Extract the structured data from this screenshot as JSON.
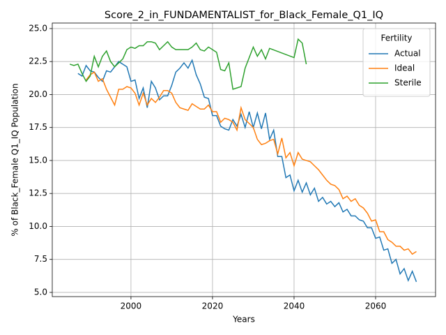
{
  "chart_data": {
    "type": "line",
    "title": "Score_2_in_FUNDAMENTALIST_for_Black_Female_Q1_IQ",
    "x_label": "Years",
    "y_label": "% of Black_Female Q1_IQ Population",
    "legend_title": "Fertility",
    "legend_loc": "upper right",
    "grid": true,
    "xlim": [
      1980.7,
      2074.7
    ],
    "ylim": [
      4.68,
      25.42
    ],
    "xticks": [
      2000,
      2020,
      2040,
      2060
    ],
    "yticks": [
      {
        "value": 5,
        "label": "5.0"
      },
      7.5,
      {
        "value": 10,
        "label": "10.0"
      },
      12.5,
      {
        "value": 15,
        "label": "15.0"
      },
      17.5,
      {
        "value": 20,
        "label": "20.0"
      },
      22.5,
      {
        "value": 25,
        "label": "25.0"
      }
    ],
    "series": [
      {
        "name": "Actual",
        "color": "#1f77b4",
        "x": [
          1987,
          1988,
          1989,
          1990,
          1991,
          1992,
          1993,
          1994,
          1995,
          1996,
          1997,
          1998,
          1999,
          2000,
          2001,
          2002,
          2003,
          2004,
          2005,
          2006,
          2007,
          2008,
          2009,
          2010,
          2011,
          2012,
          2013,
          2014,
          2015,
          2016,
          2017,
          2018,
          2019,
          2020,
          2021,
          2022,
          2023,
          2024,
          2025,
          2026,
          2027,
          2028,
          2029,
          2030,
          2031,
          2032,
          2033,
          2034,
          2035,
          2036,
          2037,
          2038,
          2039,
          2040,
          2041,
          2042,
          2043,
          2044,
          2045,
          2046,
          2047,
          2048,
          2049,
          2050,
          2051,
          2052,
          2053,
          2054,
          2055,
          2056,
          2057,
          2058,
          2059,
          2060,
          2061,
          2062,
          2063,
          2064,
          2065,
          2066,
          2067,
          2068,
          2069,
          2070
        ],
        "values": [
          21.6,
          21.4,
          22.2,
          21.8,
          21.7,
          21.3,
          21.0,
          21.8,
          21.7,
          22.1,
          22.5,
          22.3,
          22.1,
          21.0,
          21.1,
          19.7,
          20.5,
          19.0,
          21.0,
          20.5,
          19.6,
          19.9,
          19.9,
          20.7,
          21.7,
          22.0,
          22.4,
          22.0,
          22.6,
          21.5,
          20.8,
          19.8,
          19.7,
          18.4,
          18.4,
          17.6,
          17.4,
          17.3,
          18.1,
          17.6,
          18.5,
          17.5,
          18.7,
          17.5,
          18.6,
          17.4,
          18.6,
          16.6,
          17.3,
          15.3,
          15.3,
          13.7,
          13.9,
          12.7,
          13.5,
          12.6,
          13.3,
          12.4,
          12.9,
          11.9,
          12.2,
          11.7,
          11.9,
          11.5,
          11.8,
          11.1,
          11.3,
          10.8,
          10.8,
          10.5,
          10.4,
          9.9,
          9.9,
          9.1,
          9.2,
          8.2,
          8.3,
          7.2,
          7.5,
          6.4,
          6.8,
          5.9,
          6.6,
          5.8
        ]
      },
      {
        "name": "Ideal",
        "color": "#ff7f0e",
        "x": [
          1989,
          1990,
          1991,
          1992,
          1993,
          1994,
          1995,
          1996,
          1997,
          1998,
          1999,
          2000,
          2001,
          2002,
          2003,
          2004,
          2005,
          2006,
          2007,
          2008,
          2009,
          2010,
          2011,
          2012,
          2013,
          2014,
          2015,
          2016,
          2017,
          2018,
          2019,
          2020,
          2021,
          2022,
          2023,
          2024,
          2025,
          2026,
          2027,
          2028,
          2029,
          2030,
          2031,
          2032,
          2033,
          2034,
          2035,
          2036,
          2037,
          2038,
          2039,
          2040,
          2041,
          2042,
          2043,
          2044,
          2045,
          2046,
          2047,
          2048,
          2049,
          2050,
          2051,
          2052,
          2053,
          2054,
          2055,
          2056,
          2057,
          2058,
          2059,
          2060,
          2061,
          2062,
          2063,
          2064,
          2065,
          2066,
          2067,
          2068,
          2069,
          2070
        ],
        "values": [
          21.1,
          21.5,
          21.7,
          21.0,
          21.2,
          20.4,
          19.8,
          19.2,
          20.4,
          20.4,
          20.6,
          20.5,
          20.1,
          19.2,
          20.1,
          19.2,
          19.7,
          19.4,
          19.8,
          20.3,
          20.3,
          20.1,
          19.4,
          19.0,
          18.9,
          18.8,
          19.3,
          19.1,
          18.9,
          18.9,
          19.2,
          18.7,
          18.7,
          17.9,
          18.2,
          18.1,
          17.9,
          17.3,
          19.0,
          18.1,
          17.8,
          17.5,
          16.6,
          16.2,
          16.3,
          16.5,
          16.6,
          15.5,
          16.7,
          15.2,
          15.6,
          14.6,
          15.6,
          15.1,
          15.0,
          14.9,
          14.6,
          14.3,
          13.9,
          13.5,
          13.2,
          13.1,
          12.8,
          12.1,
          12.3,
          11.9,
          12.1,
          11.6,
          11.4,
          11.0,
          10.4,
          10.5,
          9.6,
          9.6,
          9.0,
          8.8,
          8.5,
          8.5,
          8.2,
          8.3,
          7.9,
          8.1
        ]
      },
      {
        "name": "Sterile",
        "color": "#2ca02c",
        "x": [
          1985,
          1986,
          1987,
          1988,
          1989,
          1990,
          1991,
          1992,
          1993,
          1994,
          1995,
          1996,
          1997,
          1998,
          1999,
          2000,
          2001,
          2002,
          2003,
          2004,
          2005,
          2006,
          2007,
          2008,
          2009,
          2010,
          2011,
          2012,
          2013,
          2014,
          2015,
          2016,
          2017,
          2018,
          2019,
          2020,
          2021,
          2022,
          2023,
          2024,
          2025,
          2026,
          2027,
          2028,
          2029,
          2030,
          2031,
          2032,
          2033,
          2034,
          2040,
          2041,
          2042,
          2043
        ],
        "values": [
          22.3,
          22.2,
          22.3,
          21.6,
          21.0,
          21.4,
          22.9,
          22.1,
          22.9,
          23.3,
          22.5,
          22.1,
          22.4,
          22.7,
          23.4,
          23.6,
          23.5,
          23.7,
          23.7,
          24.0,
          24.0,
          23.9,
          23.4,
          23.7,
          24.0,
          23.6,
          23.4,
          23.4,
          23.4,
          23.4,
          23.6,
          23.9,
          23.4,
          23.3,
          23.6,
          23.4,
          23.2,
          21.9,
          21.8,
          22.4,
          20.4,
          20.5,
          20.6,
          22.0,
          22.8,
          23.6,
          22.9,
          23.4,
          22.7,
          23.5,
          22.8,
          24.2,
          23.9,
          22.3
        ]
      }
    ]
  }
}
